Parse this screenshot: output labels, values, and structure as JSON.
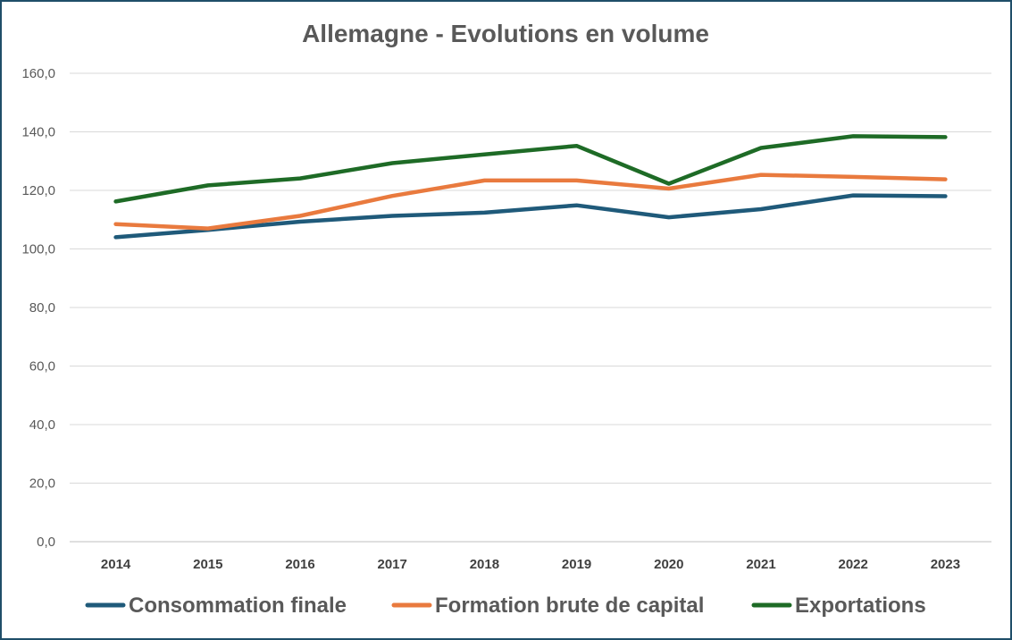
{
  "chart_data": {
    "type": "line",
    "title": "Allemagne - Evolutions en volume",
    "categories": [
      "2014",
      "2015",
      "2016",
      "2017",
      "2018",
      "2019",
      "2020",
      "2021",
      "2022",
      "2023"
    ],
    "ylim": [
      0,
      160
    ],
    "yticks": [
      "0,0",
      "20,0",
      "40,0",
      "60,0",
      "80,0",
      "100,0",
      "120,0",
      "140,0",
      "160,0"
    ],
    "grid": true,
    "legend": "bottom",
    "series": [
      {
        "name": "Consommation finale",
        "color": "#1f5a7a",
        "values": [
          104.0,
          106.5,
          109.3,
          111.3,
          112.4,
          114.9,
          110.8,
          113.6,
          118.3,
          118.0
        ]
      },
      {
        "name": "Formation brute de capital",
        "color": "#e97a3e",
        "values": [
          108.5,
          107.0,
          111.3,
          118.1,
          123.4,
          123.4,
          120.6,
          125.3,
          124.6,
          123.8
        ]
      },
      {
        "name": "Exportations",
        "color": "#1e6b26",
        "values": [
          116.2,
          121.7,
          124.1,
          129.3,
          132.3,
          135.2,
          122.3,
          134.5,
          138.5,
          138.2
        ]
      }
    ]
  }
}
